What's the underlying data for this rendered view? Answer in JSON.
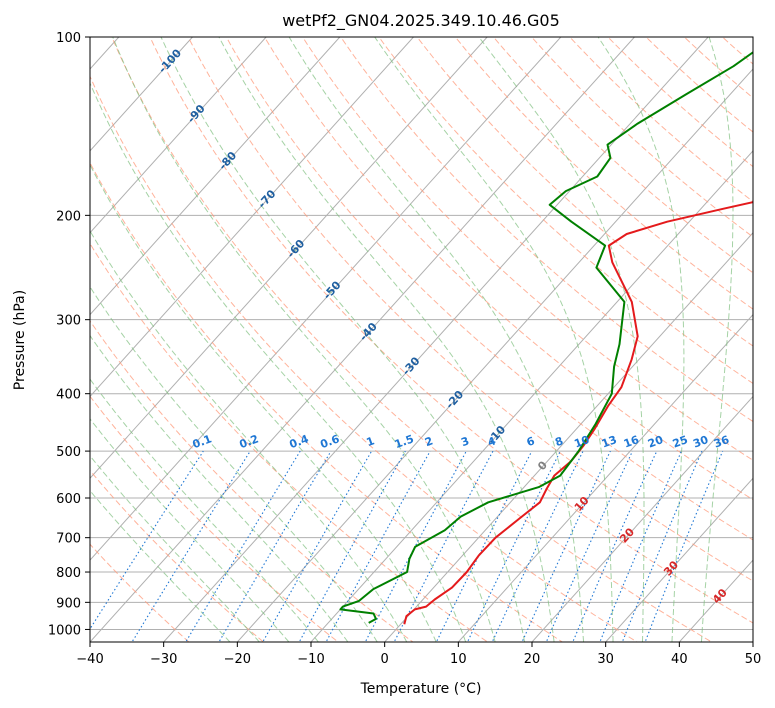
{
  "chart_data": {
    "type": "line",
    "title": "wetPf2_GN04.2025.349.10.46.G05",
    "xlabel": "Temperature (°C)",
    "ylabel": "Pressure (hPa)",
    "xlim": [
      -40,
      50
    ],
    "ylim": [
      1050,
      100
    ],
    "y_scale": "log",
    "grid": true,
    "x_ticks": [
      -40,
      -30,
      -20,
      -10,
      0,
      10,
      20,
      30,
      40,
      50
    ],
    "y_ticks": [
      100,
      200,
      300,
      400,
      500,
      600,
      700,
      800,
      900,
      1000
    ],
    "colors": {
      "temperature": "#e41a1c",
      "dewpoint": "#008000",
      "isotherms": "#b0b0b0",
      "dry_adiabats": "#ff9a7a",
      "moist_adiabats": "#7fbf7f",
      "mixing_ratio": "#1f77d4",
      "isotherm_labels_cold": "#1f5fa0",
      "isotherm_labels_warm": "#d62728"
    },
    "series": [
      {
        "name": "temperature",
        "points": [
          {
            "t": 0.5,
            "p": 980
          },
          {
            "t": -0.2,
            "p": 950
          },
          {
            "t": 0.1,
            "p": 925
          },
          {
            "t": 1.3,
            "p": 915
          },
          {
            "t": 1.6,
            "p": 890
          },
          {
            "t": 2.5,
            "p": 850
          },
          {
            "t": 2.6,
            "p": 800
          },
          {
            "t": 2.2,
            "p": 750
          },
          {
            "t": 2.3,
            "p": 700
          },
          {
            "t": 3.2,
            "p": 650
          },
          {
            "t": 4.0,
            "p": 610
          },
          {
            "t": 3.3,
            "p": 580
          },
          {
            "t": 2.7,
            "p": 550
          },
          {
            "t": 3.2,
            "p": 520
          },
          {
            "t": 3.0,
            "p": 490
          },
          {
            "t": 2.5,
            "p": 460
          },
          {
            "t": 1.5,
            "p": 420
          },
          {
            "t": 1.0,
            "p": 390
          },
          {
            "t": -1.0,
            "p": 350
          },
          {
            "t": -3.0,
            "p": 320
          },
          {
            "t": -8.0,
            "p": 280
          },
          {
            "t": -15.5,
            "p": 240
          },
          {
            "t": -18.0,
            "p": 225
          },
          {
            "t": -17.0,
            "p": 215
          },
          {
            "t": -13.0,
            "p": 205
          },
          {
            "t": -7.0,
            "p": 195
          },
          {
            "t": 3.0,
            "p": 180
          },
          {
            "t": 10.0,
            "p": 160
          },
          {
            "t": 16.0,
            "p": 140
          },
          {
            "t": 20.0,
            "p": 120
          },
          {
            "t": 25.0,
            "p": 105
          },
          {
            "t": 26.5,
            "p": 100
          }
        ]
      },
      {
        "name": "dewpoint",
        "points": [
          {
            "t": -4.5,
            "p": 975
          },
          {
            "t": -4.0,
            "p": 960
          },
          {
            "t": -5.0,
            "p": 940
          },
          {
            "t": -10.0,
            "p": 925
          },
          {
            "t": -10.0,
            "p": 915
          },
          {
            "t": -8.5,
            "p": 895
          },
          {
            "t": -8.0,
            "p": 855
          },
          {
            "t": -5.5,
            "p": 800
          },
          {
            "t": -6.8,
            "p": 760
          },
          {
            "t": -7.5,
            "p": 725
          },
          {
            "t": -5.5,
            "p": 680
          },
          {
            "t": -5.0,
            "p": 645
          },
          {
            "t": -3.0,
            "p": 610
          },
          {
            "t": 2.0,
            "p": 575
          },
          {
            "t": 3.5,
            "p": 550
          },
          {
            "t": 3.0,
            "p": 500
          },
          {
            "t": 2.0,
            "p": 450
          },
          {
            "t": 0.5,
            "p": 400
          },
          {
            "t": -2.5,
            "p": 360
          },
          {
            "t": -4.5,
            "p": 330
          },
          {
            "t": -9.0,
            "p": 280
          },
          {
            "t": -17.0,
            "p": 245
          },
          {
            "t": -18.5,
            "p": 225
          },
          {
            "t": -26.0,
            "p": 205
          },
          {
            "t": -31.0,
            "p": 192
          },
          {
            "t": -30.5,
            "p": 182
          },
          {
            "t": -28.0,
            "p": 172
          },
          {
            "t": -28.5,
            "p": 160
          },
          {
            "t": -30.5,
            "p": 152
          },
          {
            "t": -29.0,
            "p": 140
          },
          {
            "t": -26.0,
            "p": 125
          },
          {
            "t": -23.0,
            "p": 112
          },
          {
            "t": -21.0,
            "p": 100
          }
        ]
      }
    ],
    "isotherm_labels": [
      {
        "text": "-100",
        "t": -100,
        "p": 110,
        "color": "cold"
      },
      {
        "text": "-90",
        "t": -90,
        "p": 135,
        "color": "cold"
      },
      {
        "text": "-80",
        "t": -80,
        "p": 162,
        "color": "cold"
      },
      {
        "text": "-70",
        "t": -70,
        "p": 188,
        "color": "cold"
      },
      {
        "text": "-60",
        "t": -60,
        "p": 228,
        "color": "cold"
      },
      {
        "text": "-50",
        "t": -50,
        "p": 268,
        "color": "cold"
      },
      {
        "text": "-40",
        "t": -40,
        "p": 315,
        "color": "cold"
      },
      {
        "text": "-30",
        "t": -30,
        "p": 360,
        "color": "cold"
      },
      {
        "text": "-20",
        "t": -20,
        "p": 410,
        "color": "cold"
      },
      {
        "text": "-10",
        "t": -10,
        "p": 470,
        "color": "cold"
      },
      {
        "text": "0",
        "t": 0,
        "p": 530,
        "color": "zero"
      },
      {
        "text": "10",
        "t": 10,
        "p": 615,
        "color": "warm"
      },
      {
        "text": "20",
        "t": 20,
        "p": 695,
        "color": "warm"
      },
      {
        "text": "30",
        "t": 30,
        "p": 790,
        "color": "warm"
      },
      {
        "text": "40",
        "t": 40,
        "p": 880,
        "color": "warm"
      }
    ],
    "mixing_ratio_labels": [
      {
        "text": "0.1",
        "w": 0.1
      },
      {
        "text": "0.2",
        "w": 0.2
      },
      {
        "text": "0.4",
        "w": 0.4
      },
      {
        "text": "0.6",
        "w": 0.6
      },
      {
        "text": "1",
        "w": 1
      },
      {
        "text": "1.5",
        "w": 1.5
      },
      {
        "text": "2",
        "w": 2
      },
      {
        "text": "3",
        "w": 3
      },
      {
        "text": "4",
        "w": 4
      },
      {
        "text": "6",
        "w": 6
      },
      {
        "text": "8",
        "w": 8
      },
      {
        "text": "10",
        "w": 10
      },
      {
        "text": "13",
        "w": 13
      },
      {
        "text": "16",
        "w": 16
      },
      {
        "text": "20",
        "w": 20
      },
      {
        "text": "25",
        "w": 25
      },
      {
        "text": "30",
        "w": 30
      },
      {
        "text": "36",
        "w": 36
      }
    ]
  }
}
